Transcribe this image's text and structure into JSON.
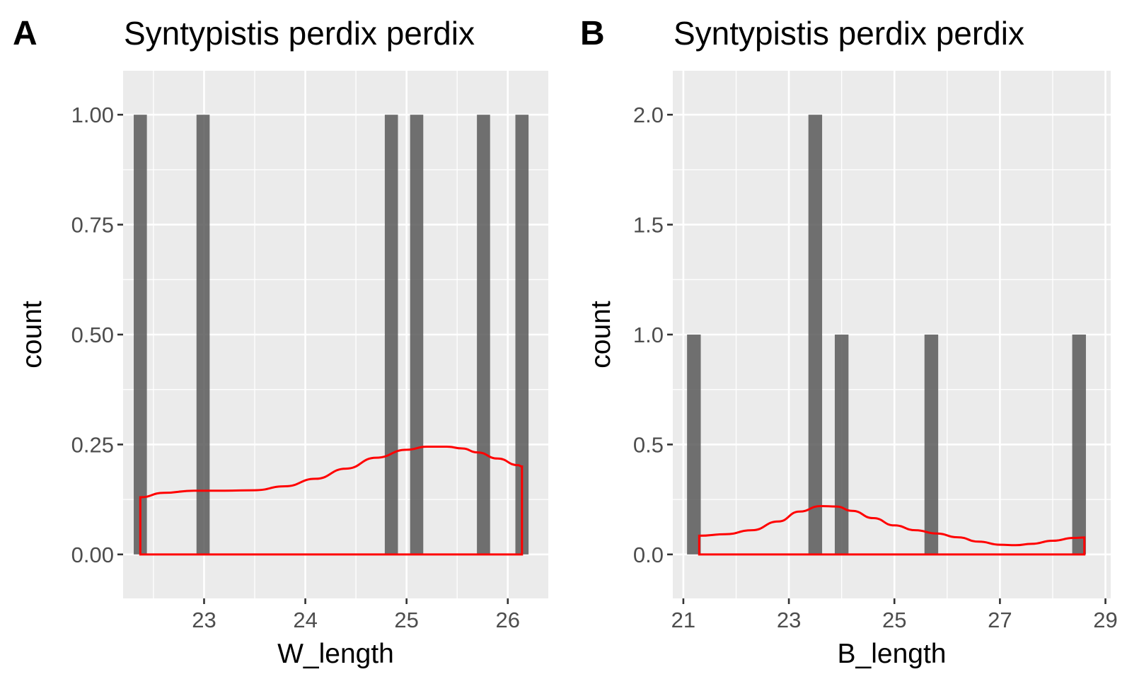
{
  "chart_data": [
    {
      "type": "bar",
      "panel_label": "A",
      "title": "Syntypistis perdix perdix",
      "xlabel": "W_length",
      "ylabel": "count",
      "xlim": [
        22.2,
        26.4
      ],
      "ylim": [
        -0.1,
        1.1
      ],
      "x_ticks": [
        23,
        24,
        25,
        26
      ],
      "x_tick_labels": [
        "23",
        "24",
        "25",
        "26"
      ],
      "y_ticks": [
        0,
        0.25,
        0.5,
        0.75,
        1
      ],
      "y_tick_labels": [
        "0.00",
        "0.25",
        "0.50",
        "0.75",
        "1.00"
      ],
      "bar_width": 0.13,
      "bars": [
        {
          "x": 22.37,
          "count": 1
        },
        {
          "x": 22.99,
          "count": 1
        },
        {
          "x": 24.85,
          "count": 1
        },
        {
          "x": 25.1,
          "count": 1
        },
        {
          "x": 25.76,
          "count": 1
        },
        {
          "x": 26.14,
          "count": 1
        }
      ],
      "bar_color": "#595959",
      "density": {
        "color": "#ff0000",
        "x": [
          22.37,
          22.6,
          22.9,
          23.2,
          23.5,
          23.8,
          24.1,
          24.4,
          24.7,
          25.0,
          25.2,
          25.4,
          25.55,
          25.7,
          25.9,
          26.1,
          26.14
        ],
        "y": [
          0.13,
          0.14,
          0.145,
          0.145,
          0.146,
          0.155,
          0.172,
          0.195,
          0.22,
          0.238,
          0.245,
          0.245,
          0.241,
          0.232,
          0.218,
          0.203,
          0.2
        ]
      },
      "grid": true
    },
    {
      "type": "bar",
      "panel_label": "B",
      "title": "Syntypistis perdix perdix",
      "xlabel": "B_length",
      "ylabel": "count",
      "xlim": [
        20.8,
        29.1
      ],
      "ylim": [
        -0.2,
        2.2
      ],
      "x_ticks": [
        21,
        23,
        25,
        27,
        29
      ],
      "x_tick_labels": [
        "21",
        "23",
        "25",
        "27",
        "29"
      ],
      "y_ticks": [
        0,
        0.5,
        1,
        1.5,
        2
      ],
      "y_tick_labels": [
        "0.0",
        "0.5",
        "1.0",
        "1.5",
        "2.0"
      ],
      "bar_width": 0.26,
      "bars": [
        {
          "x": 21.2,
          "count": 1
        },
        {
          "x": 23.5,
          "count": 2
        },
        {
          "x": 24.0,
          "count": 1
        },
        {
          "x": 25.7,
          "count": 1
        },
        {
          "x": 28.5,
          "count": 1
        }
      ],
      "bar_color": "#595959",
      "density": {
        "color": "#ff0000",
        "x": [
          21.3,
          21.8,
          22.3,
          22.8,
          23.2,
          23.6,
          23.9,
          24.2,
          24.6,
          25.0,
          25.4,
          25.8,
          26.2,
          26.6,
          27.0,
          27.3,
          27.6,
          28.0,
          28.4,
          28.6
        ],
        "y": [
          0.085,
          0.092,
          0.11,
          0.15,
          0.195,
          0.22,
          0.218,
          0.198,
          0.165,
          0.132,
          0.11,
          0.095,
          0.078,
          0.058,
          0.044,
          0.042,
          0.048,
          0.062,
          0.075,
          0.077
        ]
      },
      "grid": true
    }
  ]
}
